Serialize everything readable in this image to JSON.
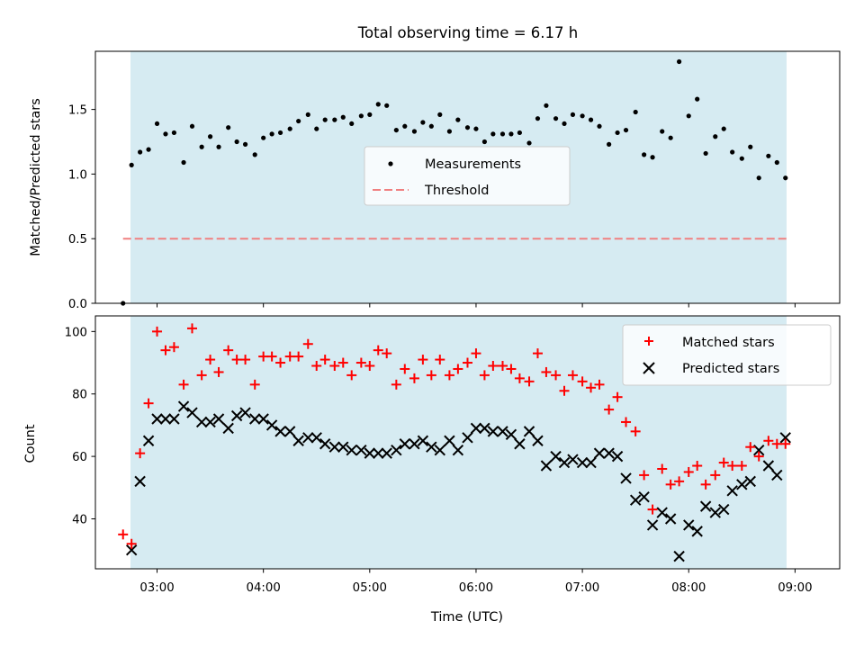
{
  "chart_data": [
    {
      "type": "scatter",
      "title": "Total observing time = 6.17 h",
      "ylabel": "Matched/Predicted stars",
      "ylim": [
        0,
        1.95
      ],
      "y_ticks": [
        0.0,
        0.5,
        1.0,
        1.5
      ],
      "y_tick_labels": [
        "0.0",
        "0.5",
        "1.0",
        "1.5"
      ],
      "xlim_hours": [
        2.42,
        9.42
      ],
      "shaded_span_hours": [
        2.75,
        8.92
      ],
      "legend": {
        "position": "center",
        "entries": [
          "Measurements",
          "Threshold"
        ]
      },
      "threshold": {
        "name": "Threshold",
        "value": 0.5,
        "x_range_hours": [
          2.68,
          8.92
        ],
        "color": "#f08080"
      },
      "series": [
        {
          "name": "Measurements",
          "color": "#000000",
          "x_hours": [
            2.68,
            2.76,
            2.84,
            2.92,
            3.0,
            3.08,
            3.16,
            3.25,
            3.33,
            3.42,
            3.5,
            3.58,
            3.67,
            3.75,
            3.83,
            3.92,
            4.0,
            4.08,
            4.16,
            4.25,
            4.33,
            4.42,
            4.5,
            4.58,
            4.67,
            4.75,
            4.83,
            4.92,
            5.0,
            5.08,
            5.16,
            5.25,
            5.33,
            5.42,
            5.5,
            5.58,
            5.66,
            5.75,
            5.83,
            5.92,
            6.0,
            6.08,
            6.16,
            6.25,
            6.33,
            6.41,
            6.5,
            6.58,
            6.66,
            6.75,
            6.83,
            6.91,
            7.0,
            7.08,
            7.16,
            7.25,
            7.33,
            7.41,
            7.5,
            7.58,
            7.66,
            7.75,
            7.83,
            7.91,
            8.0,
            8.08,
            8.16,
            8.25,
            8.33,
            8.41,
            8.5,
            8.58,
            8.66,
            8.75,
            8.83,
            8.91
          ],
          "values": [
            0.0,
            1.07,
            1.17,
            1.19,
            1.39,
            1.31,
            1.32,
            1.09,
            1.37,
            1.21,
            1.29,
            1.21,
            1.36,
            1.25,
            1.23,
            1.15,
            1.28,
            1.31,
            1.32,
            1.35,
            1.41,
            1.46,
            1.35,
            1.42,
            1.42,
            1.44,
            1.39,
            1.45,
            1.46,
            1.54,
            1.53,
            1.34,
            1.37,
            1.33,
            1.4,
            1.37,
            1.46,
            1.33,
            1.42,
            1.36,
            1.35,
            1.25,
            1.31,
            1.31,
            1.31,
            1.32,
            1.24,
            1.43,
            1.53,
            1.43,
            1.39,
            1.46,
            1.45,
            1.42,
            1.37,
            1.23,
            1.32,
            1.34,
            1.48,
            1.15,
            1.13,
            1.33,
            1.28,
            1.87,
            1.45,
            1.58,
            1.16,
            1.29,
            1.35,
            1.17,
            1.12,
            1.21,
            0.97,
            1.14,
            1.09,
            0.97
          ]
        }
      ]
    },
    {
      "type": "scatter",
      "xlabel": "Time (UTC)",
      "ylabel": "Count",
      "ylim": [
        24,
        105
      ],
      "y_ticks": [
        40,
        60,
        80,
        100
      ],
      "y_tick_labels": [
        "40",
        "60",
        "80",
        "100"
      ],
      "xlim_hours": [
        2.42,
        9.42
      ],
      "x_ticks_hours": [
        3,
        4,
        5,
        6,
        7,
        8,
        9
      ],
      "x_tick_labels": [
        "03:00",
        "04:00",
        "05:00",
        "06:00",
        "07:00",
        "08:00",
        "09:00"
      ],
      "shaded_span_hours": [
        2.75,
        8.92
      ],
      "legend": {
        "position": "top-right",
        "entries": [
          "Matched stars",
          "Predicted stars"
        ]
      },
      "series": [
        {
          "name": "Matched stars",
          "marker": "plus",
          "color": "#ff0000",
          "x_hours": [
            2.68,
            2.76,
            2.84,
            2.92,
            3.0,
            3.08,
            3.16,
            3.25,
            3.33,
            3.42,
            3.5,
            3.58,
            3.67,
            3.75,
            3.83,
            3.92,
            4.0,
            4.08,
            4.16,
            4.25,
            4.33,
            4.42,
            4.5,
            4.58,
            4.67,
            4.75,
            4.83,
            4.92,
            5.0,
            5.08,
            5.16,
            5.25,
            5.33,
            5.42,
            5.5,
            5.58,
            5.66,
            5.75,
            5.83,
            5.92,
            6.0,
            6.08,
            6.16,
            6.25,
            6.33,
            6.41,
            6.5,
            6.58,
            6.66,
            6.75,
            6.83,
            6.91,
            7.0,
            7.08,
            7.16,
            7.25,
            7.33,
            7.41,
            7.5,
            7.58,
            7.66,
            7.75,
            7.83,
            7.91,
            8.0,
            8.08,
            8.16,
            8.25,
            8.33,
            8.41,
            8.5,
            8.58,
            8.66,
            8.75,
            8.83,
            8.91
          ],
          "values": [
            35,
            32,
            61,
            77,
            100,
            94,
            95,
            83,
            101,
            86,
            91,
            87,
            94,
            91,
            91,
            83,
            92,
            92,
            90,
            92,
            92,
            96,
            89,
            91,
            89,
            90,
            86,
            90,
            89,
            94,
            93,
            83,
            88,
            85,
            91,
            86,
            91,
            86,
            88,
            90,
            93,
            86,
            89,
            89,
            88,
            85,
            84,
            93,
            87,
            86,
            81,
            86,
            84,
            82,
            83,
            75,
            79,
            71,
            68,
            54,
            43,
            56,
            51,
            52,
            55,
            57,
            51,
            54,
            58,
            57,
            57,
            63,
            60,
            65,
            64,
            64
          ]
        },
        {
          "name": "Predicted stars",
          "marker": "x",
          "color": "#000000",
          "x_hours": [
            2.76,
            2.84,
            2.92,
            3.0,
            3.08,
            3.16,
            3.25,
            3.33,
            3.42,
            3.5,
            3.58,
            3.67,
            3.75,
            3.83,
            3.92,
            4.0,
            4.08,
            4.16,
            4.25,
            4.33,
            4.42,
            4.5,
            4.58,
            4.67,
            4.75,
            4.83,
            4.92,
            5.0,
            5.08,
            5.16,
            5.25,
            5.33,
            5.42,
            5.5,
            5.58,
            5.66,
            5.75,
            5.83,
            5.92,
            6.0,
            6.08,
            6.16,
            6.25,
            6.33,
            6.41,
            6.5,
            6.58,
            6.66,
            6.75,
            6.83,
            6.91,
            7.0,
            7.08,
            7.16,
            7.25,
            7.33,
            7.41,
            7.5,
            7.58,
            7.66,
            7.75,
            7.83,
            7.91,
            8.0,
            8.08,
            8.16,
            8.25,
            8.33,
            8.41,
            8.5,
            8.58,
            8.66,
            8.75,
            8.83,
            8.91
          ],
          "values": [
            30,
            52,
            65,
            72,
            72,
            72,
            76,
            74,
            71,
            71,
            72,
            69,
            73,
            74,
            72,
            72,
            70,
            68,
            68,
            65,
            66,
            66,
            64,
            63,
            63,
            62,
            62,
            61,
            61,
            61,
            62,
            64,
            64,
            65,
            63,
            62,
            65,
            62,
            66,
            69,
            69,
            68,
            68,
            67,
            64,
            68,
            65,
            57,
            60,
            58,
            59,
            58,
            58,
            61,
            61,
            60,
            53,
            46,
            47,
            38,
            42,
            40,
            28,
            38,
            36,
            44,
            42,
            43,
            49,
            51,
            52,
            62,
            57,
            54,
            66
          ]
        }
      ]
    }
  ]
}
